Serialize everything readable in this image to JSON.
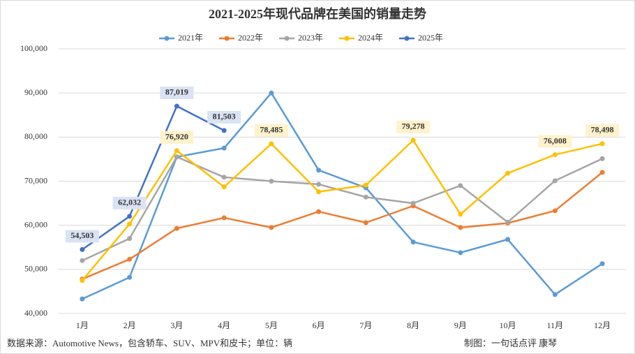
{
  "chart_data": {
    "type": "line",
    "title": "2021-2025年现代品牌在美国的销量走势",
    "categories": [
      "1月",
      "2月",
      "3月",
      "4月",
      "5月",
      "6月",
      "7月",
      "8月",
      "9月",
      "10月",
      "11月",
      "12月"
    ],
    "series": [
      {
        "name": "2021年",
        "color": "#5b9bd5",
        "values": [
          43300,
          48200,
          75500,
          77500,
          90000,
          72500,
          68500,
          56200,
          53800,
          56800,
          44300,
          51300
        ]
      },
      {
        "name": "2022年",
        "color": "#ed7d31",
        "values": [
          47800,
          52300,
          59300,
          61700,
          59500,
          63100,
          60600,
          64400,
          59500,
          60500,
          63300,
          72000
        ]
      },
      {
        "name": "2023年",
        "color": "#a5a5a5",
        "values": [
          52000,
          57000,
          75500,
          70900,
          70000,
          69300,
          66400,
          65000,
          69000,
          60700,
          70100,
          75100
        ]
      },
      {
        "name": "2024年",
        "color": "#ffc000",
        "label_box": "#fff2cc",
        "values": [
          47500,
          60300,
          76920,
          68700,
          78485,
          67600,
          69100,
          79278,
          62500,
          71800,
          76008,
          78498
        ],
        "value_labels": [
          null,
          null,
          "76,920",
          null,
          "78,485",
          null,
          null,
          "79,278",
          null,
          null,
          "76,008",
          "78,498"
        ]
      },
      {
        "name": "2025年",
        "color": "#4472c4",
        "label_box": "#dae3f3",
        "values": [
          54503,
          62032,
          87019,
          81503,
          null,
          null,
          null,
          null,
          null,
          null,
          null,
          null
        ],
        "value_labels": [
          "54,503",
          "62,032",
          "87,019",
          "81,503",
          null,
          null,
          null,
          null,
          null,
          null,
          null,
          null
        ]
      }
    ],
    "ylim": [
      40000,
      100000
    ],
    "yticks": [
      {
        "value": 40000,
        "label": "40,000"
      },
      {
        "value": 50000,
        "label": "50,000"
      },
      {
        "value": 60000,
        "label": "60,000"
      },
      {
        "value": 70000,
        "label": "70,000"
      },
      {
        "value": 80000,
        "label": "80,000"
      },
      {
        "value": 90000,
        "label": "90,000"
      },
      {
        "value": 100000,
        "label": "100,000"
      }
    ],
    "grid": true,
    "legend": "top",
    "source": "数据来源：Automotive News，包含轿车、SUV、MPV和皮卡；单位：辆",
    "credit": "制图：一句话点评  康琴"
  }
}
